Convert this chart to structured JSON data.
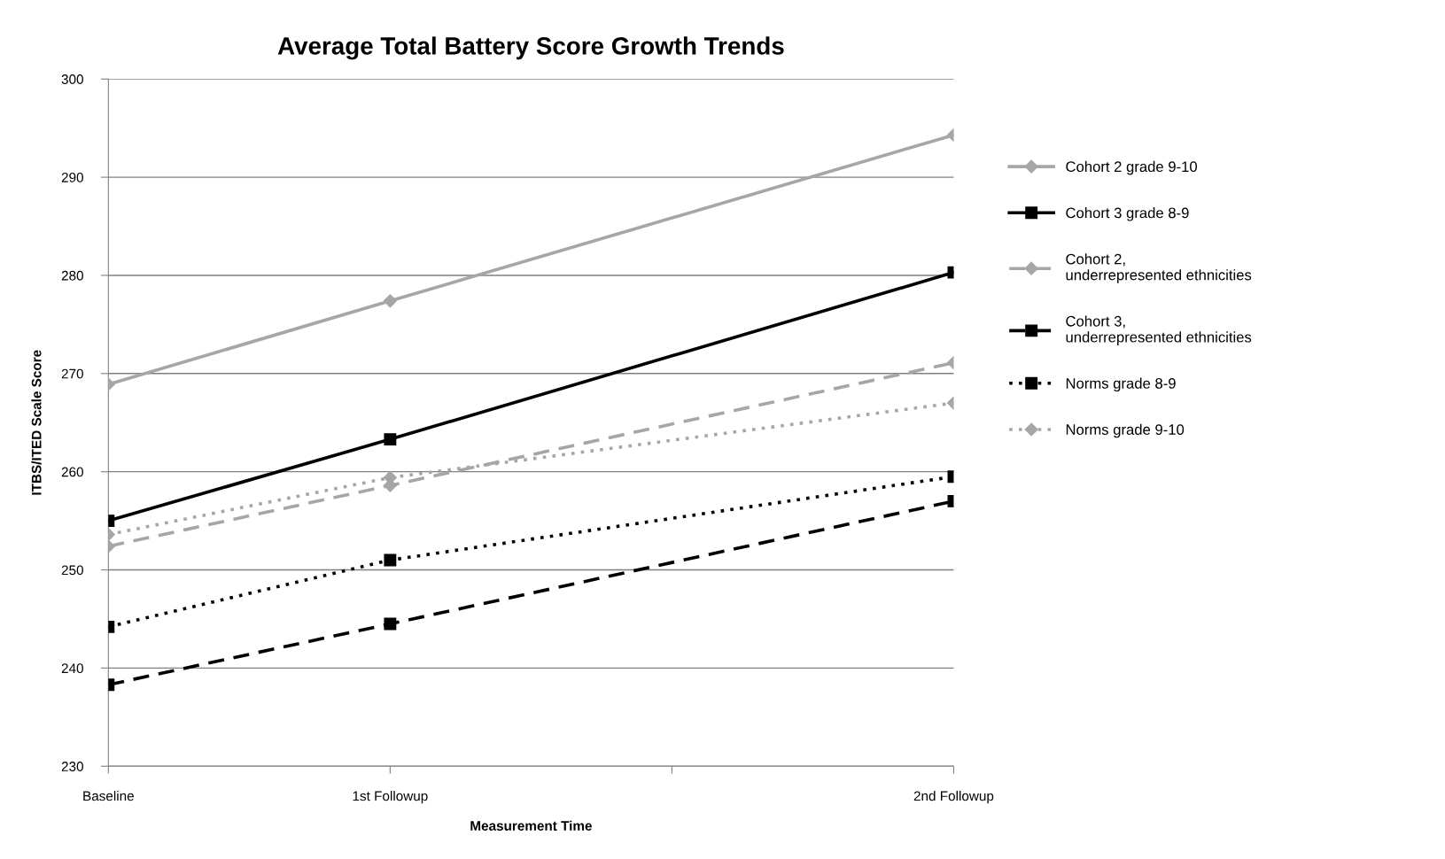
{
  "chart_data": {
    "type": "line",
    "title": "Average Total Battery Score Growth Trends",
    "xlabel": "Measurement Time",
    "ylabel": "ITBS/ITED Scale Score",
    "categories": [
      "Baseline",
      "1st Followup",
      null,
      "2nd Followup"
    ],
    "ylim": [
      230,
      300
    ],
    "yticks": [
      230,
      240,
      250,
      260,
      270,
      280,
      290,
      300
    ],
    "grid": "y",
    "legend": "right",
    "series": [
      {
        "name": "Cohort 2 grade 9-10",
        "color": "#a6a6a6",
        "marker": "diamond",
        "line_style": "solid",
        "values": [
          268.9,
          277.4,
          null,
          294.3
        ]
      },
      {
        "name": "Cohort 3 grade 8-9",
        "color": "#000000",
        "marker": "square",
        "line_style": "solid",
        "values": [
          255.0,
          263.3,
          null,
          280.3
        ]
      },
      {
        "name": "Cohort 2,\nunderrepresented ethnicities",
        "color": "#a6a6a6",
        "marker": "diamond",
        "line_style": "dashed",
        "values": [
          252.4,
          258.6,
          null,
          271.1
        ]
      },
      {
        "name": "Cohort 3,\nunderrepresented ethnicities",
        "color": "#000000",
        "marker": "square",
        "line_style": "dashed",
        "values": [
          238.3,
          244.5,
          null,
          257.0
        ]
      },
      {
        "name": "Norms grade 8-9",
        "color": "#000000",
        "marker": "square",
        "line_style": "dotted",
        "values": [
          244.2,
          251.0,
          null,
          259.5
        ]
      },
      {
        "name": "Norms grade 9-10",
        "color": "#a6a6a6",
        "marker": "diamond",
        "line_style": "dotted",
        "values": [
          253.6,
          259.4,
          null,
          267.0
        ]
      }
    ]
  }
}
